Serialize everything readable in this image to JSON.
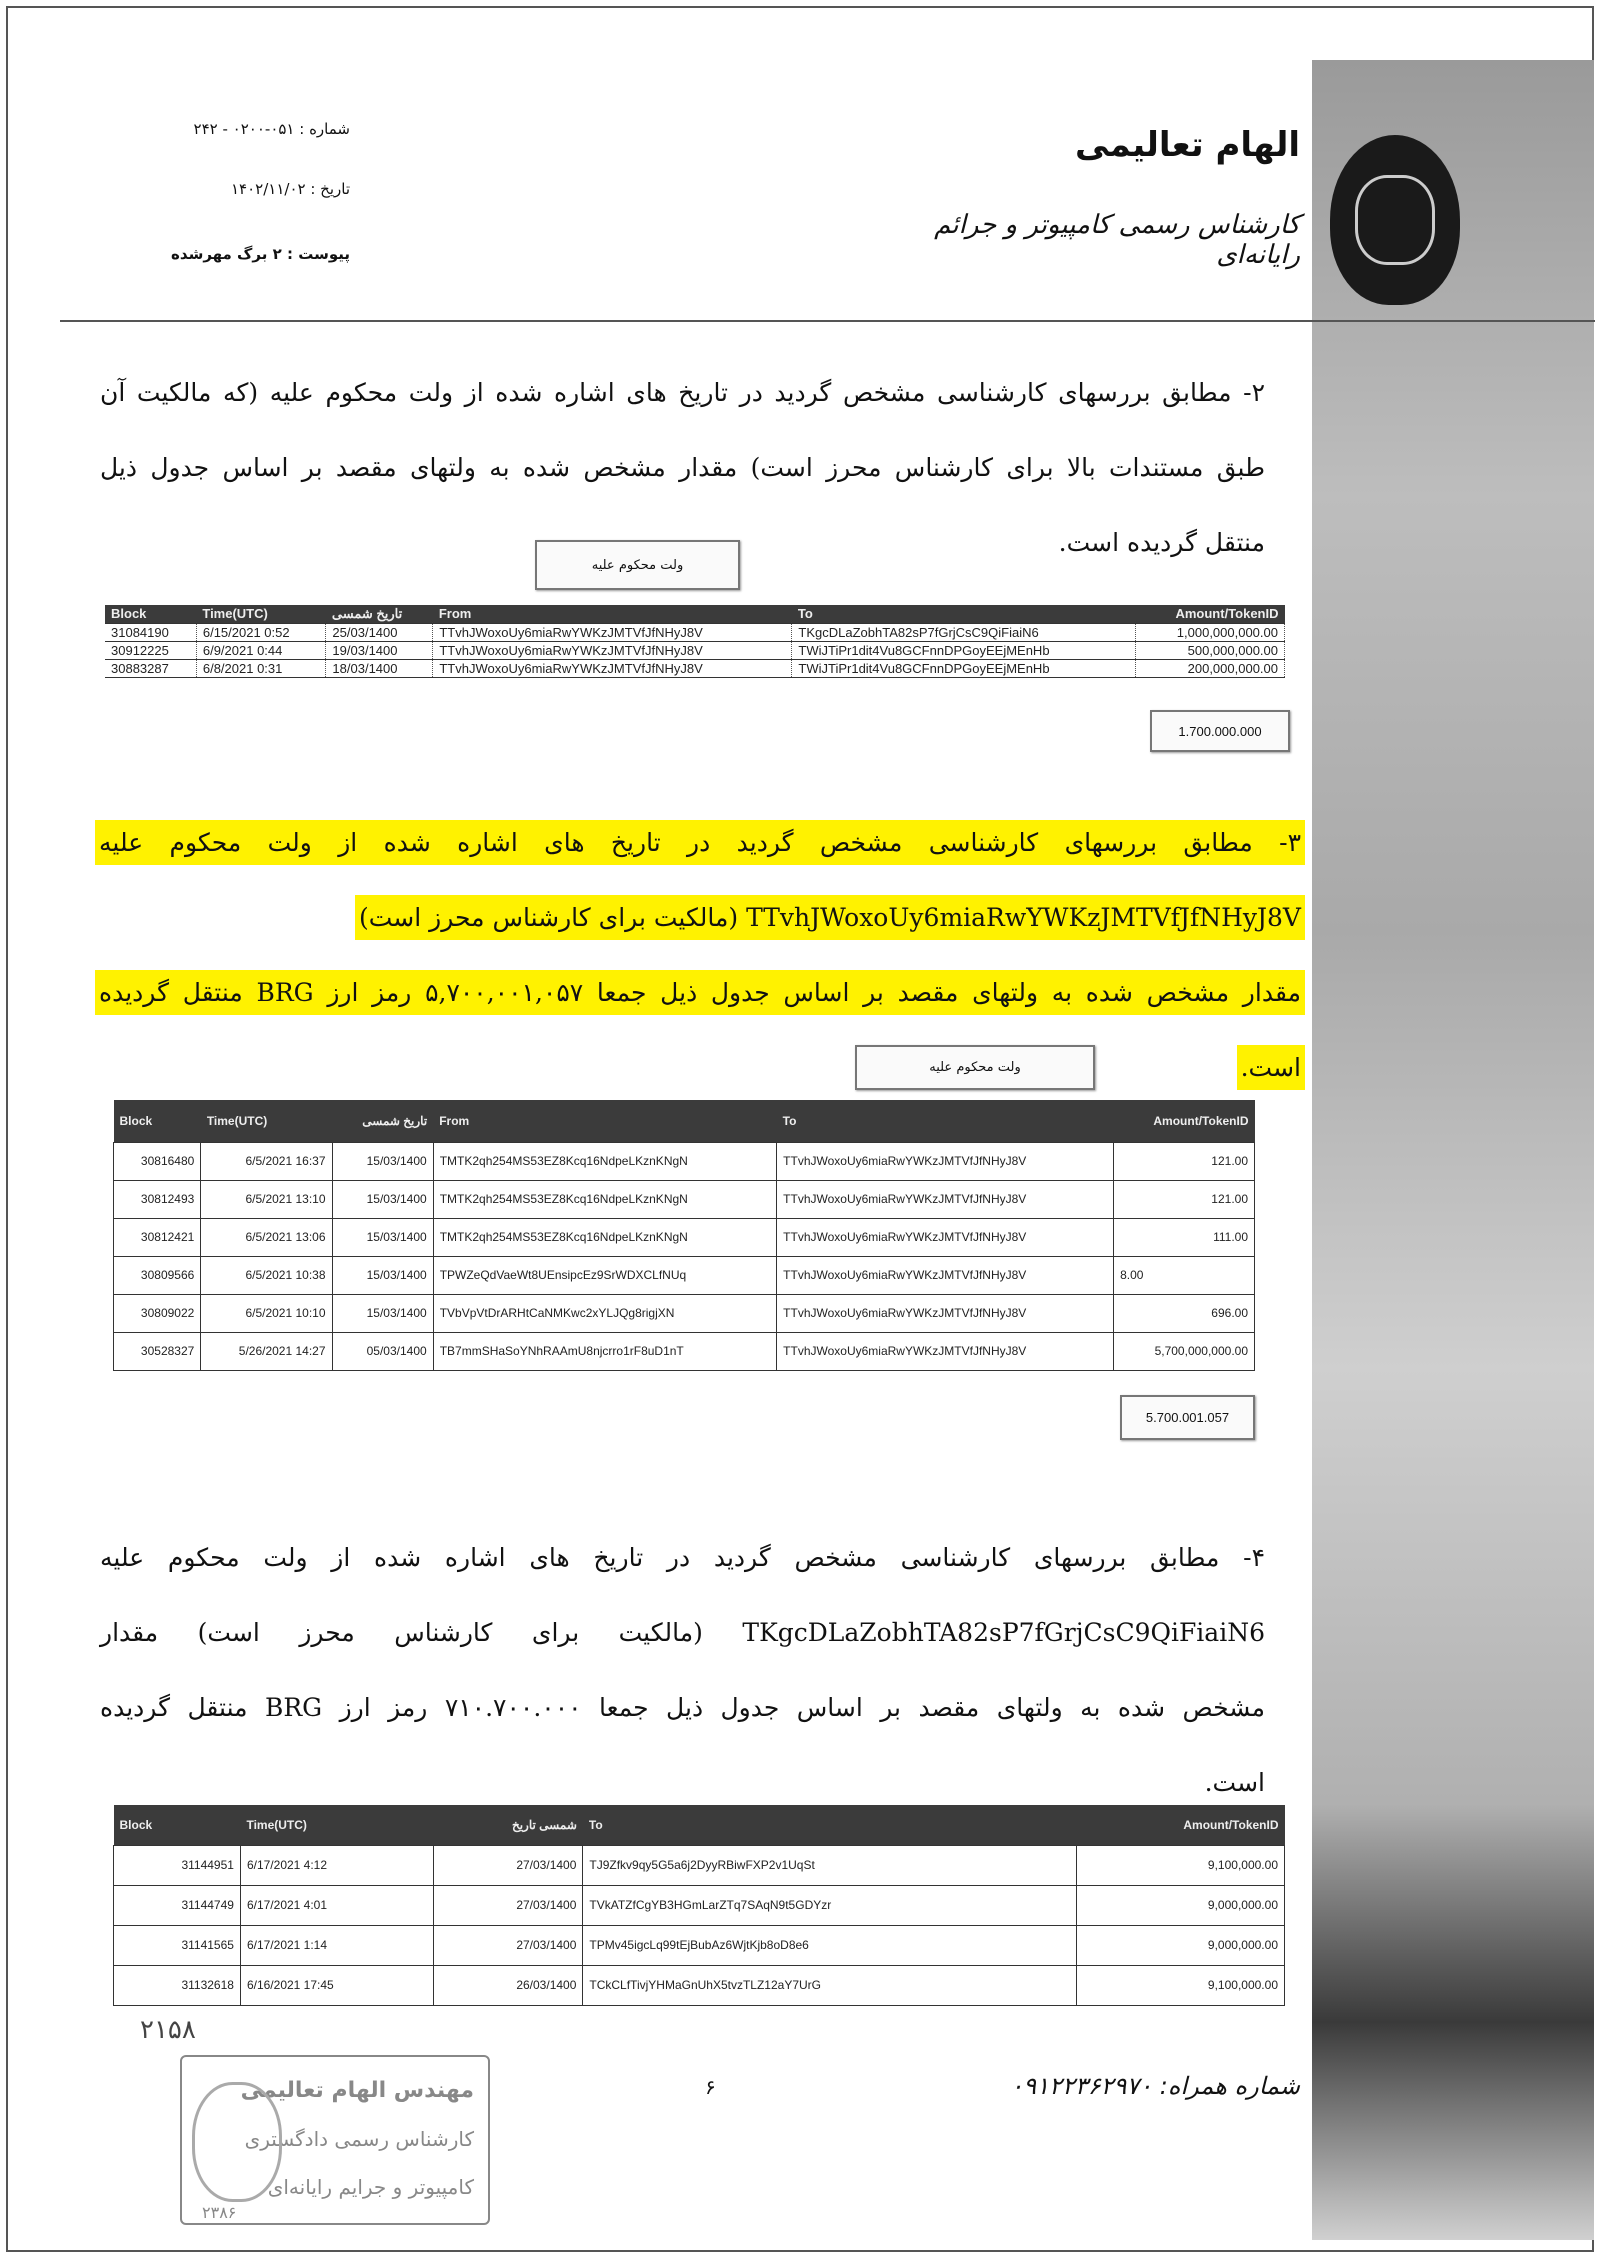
{
  "header": {
    "title": "الهام تعالیمی",
    "subtitle": "کارشناس رسمی کامپیوتر و جرائم رایانه‌ای",
    "number": "شماره : ۰۵۱-۰۲۰۰ - ۲۴۲",
    "date": "تاریخ : ۱۴۰۲/۱۱/۰۲",
    "attachment": "پیوست : ۲ برگ مهرشده"
  },
  "section2": {
    "lines": [
      "۲- مطابق بررسهای کارشناسی مشخص گردید در تاریخ های اشاره شده از ولت محکوم علیه (که مالکیت آن",
      "طبق مستندات بالا برای کارشناس محرز است) مقدار مشخص شده به ولتهای مقصد بر اساس جدول ذیل",
      "منتقل گردیده است."
    ],
    "label": "ولت محکوم علیه",
    "table": {
      "headers": [
        "Block",
        "Time(UTC)",
        "تاریخ شمسی",
        "From",
        "To",
        "Amount/TokenID"
      ],
      "rows": [
        [
          "31084190",
          "6/15/2021 0:52",
          "25/03/1400",
          "TTvhJWoxoUy6miaRwYWKzJMTVfJfNHyJ8V",
          "TKgcDLaZobhTA82sP7fGrjCsC9QiFiaiN6",
          "1,000,000,000.00"
        ],
        [
          "30912225",
          "6/9/2021 0:44",
          "19/03/1400",
          "TTvhJWoxoUy6miaRwYWKzJMTVfJfNHyJ8V",
          "TWiJTiPr1dit4Vu8GCFnnDPGoyEEjMEnHb",
          "500,000,000.00"
        ],
        [
          "30883287",
          "6/8/2021 0:31",
          "18/03/1400",
          "TTvhJWoxoUy6miaRwYWKzJMTVfJfNHyJ8V",
          "TWiJTiPr1dit4Vu8GCFnnDPGoyEEjMEnHb",
          "200,000,000.00"
        ]
      ]
    },
    "total": "1.700.000.000"
  },
  "section3": {
    "lines": [
      "۳- مطابق بررسهای کارشناسی مشخص گردید در تاریخ های اشاره شده از ولت محکوم علیه",
      "TTvhJWoxoUy6miaRwYWKzJMTVfJfNHyJ8V (مالکیت برای کارشناس محرز است)",
      "مقدار مشخص شده به ولتهای مقصد بر اساس جدول ذیل جمعا ۵,۷۰۰,۰۰۱,۰۵۷ رمز ارز BRG منتقل گردیده",
      "است."
    ],
    "label": "ولت محکوم علیه",
    "table": {
      "headers": [
        "Block",
        "Time(UTC)",
        "تاریخ شمسی",
        "From",
        "To",
        "Amount/TokenID"
      ],
      "rows": [
        [
          "30816480",
          "6/5/2021 16:37",
          "15/03/1400",
          "TMTK2qh254MS53EZ8Kcq16NdpeLKznKNgN",
          "TTvhJWoxoUy6miaRwYWKzJMTVfJfNHyJ8V",
          "121.00"
        ],
        [
          "30812493",
          "6/5/2021 13:10",
          "15/03/1400",
          "TMTK2qh254MS53EZ8Kcq16NdpeLKznKNgN",
          "TTvhJWoxoUy6miaRwYWKzJMTVfJfNHyJ8V",
          "121.00"
        ],
        [
          "30812421",
          "6/5/2021 13:06",
          "15/03/1400",
          "TMTK2qh254MS53EZ8Kcq16NdpeLKznKNgN",
          "TTvhJWoxoUy6miaRwYWKzJMTVfJfNHyJ8V",
          "111.00"
        ],
        [
          "30809566",
          "6/5/2021 10:38",
          "15/03/1400",
          "TPWZeQdVaeWt8UEnsipcEz9SrWDXCLfNUq",
          "TTvhJWoxoUy6miaRwYWKzJMTVfJfNHyJ8V",
          "8.00"
        ],
        [
          "30809022",
          "6/5/2021 10:10",
          "15/03/1400",
          "TVbVpVtDrARHtCaNMKwc2xYLJQg8rigjXN",
          "TTvhJWoxoUy6miaRwYWKzJMTVfJfNHyJ8V",
          "696.00"
        ],
        [
          "30528327",
          "5/26/2021 14:27",
          "05/03/1400",
          "TB7mmSHaSoYNhRAAmU8njcrro1rF8uD1nT",
          "TTvhJWoxoUy6miaRwYWKzJMTVfJfNHyJ8V",
          "5,700,000,000.00"
        ]
      ]
    },
    "total": "5.700.001.057"
  },
  "section4": {
    "lines": [
      "۴- مطابق بررسهای کارشناسی مشخص گردید در تاریخ های اشاره شده از ولت محکوم علیه",
      "TKgcDLaZobhTA82sP7fGrjCsC9QiFiaiN6 (مالکیت برای کارشناس محرز است) مقدار",
      "مشخص شده به ولتهای مقصد بر اساس جدول ذیل جمعا ۷۱۰.۷۰۰.۰۰۰ رمز ارز BRG منتقل گردیده",
      "است."
    ],
    "table": {
      "headers": [
        "Block",
        "Time(UTC)",
        "شمسی تاریخ",
        "To",
        "Amount/TokenID"
      ],
      "rows": [
        [
          "31144951",
          "6/17/2021 4:12",
          "27/03/1400",
          "TJ9Zfkv9qy5G5a6j2DyyRBiwFXP2v1UqSt",
          "9,100,000.00"
        ],
        [
          "31144749",
          "6/17/2021 4:01",
          "27/03/1400",
          "TVkATZfCgYB3HGmLarZTq7SAqN9t5GDYzr",
          "9,000,000.00"
        ],
        [
          "31141565",
          "6/17/2021 1:14",
          "27/03/1400",
          "TPMv45igcLq99tEjBubAz6WjtKjb8oD8e6",
          "9,000,000.00"
        ],
        [
          "31132618",
          "6/16/2021 17:45",
          "26/03/1400",
          "TCkCLfTivjYHMaGnUhX5tvzTLZ12aY7UrG",
          "9,100,000.00"
        ]
      ]
    }
  },
  "footer": {
    "page_number": "۶",
    "mobile": "شماره همراه: ۰۹۱۲۲۳۶۲۹۷۰",
    "stamp_lines": [
      "مهندس الهام تعالیمی",
      "کارشناس رسمی دادگستری",
      "کامپیوتر و جرایم رایانه‌ای"
    ],
    "handwritten": "۲۱۵۸",
    "stamp_number": "۲۳۸۶"
  },
  "colors": {
    "highlight": "#fff200",
    "table_header": "#3b3b3b"
  }
}
